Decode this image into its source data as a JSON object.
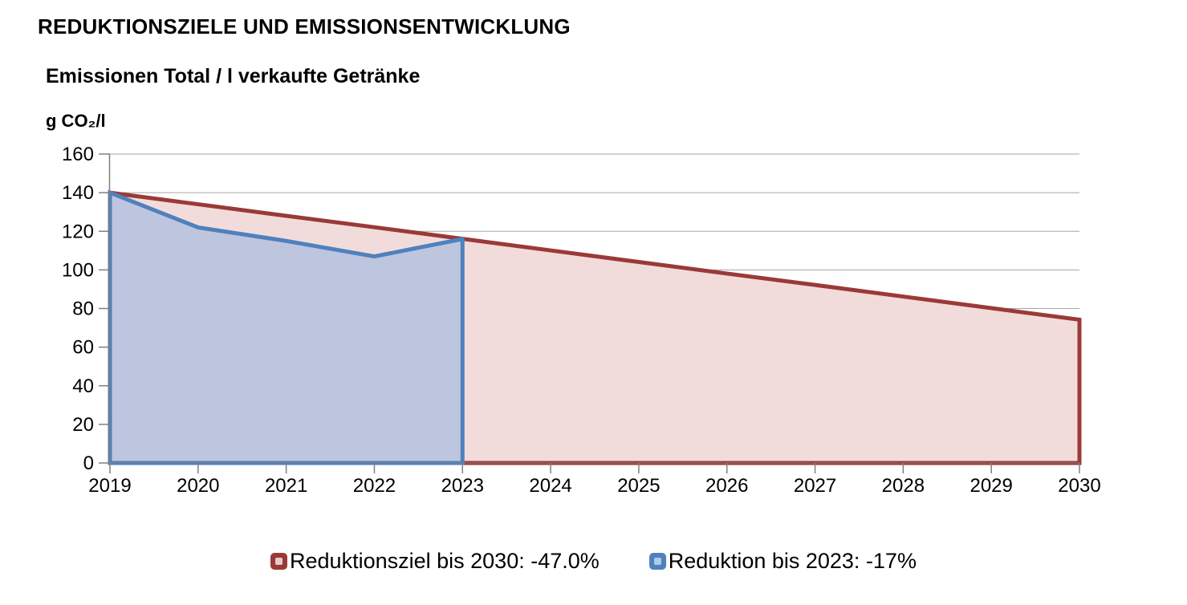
{
  "header": {
    "title": "REDUKTIONSZIELE UND EMISSIONSENTWICKLUNG",
    "subtitle": "Emissionen Total / l verkaufte Getränke",
    "unit_label": "g CO₂/l"
  },
  "chart_data": {
    "type": "area",
    "title": "Emissionen Total / l verkaufte Getränke",
    "ylabel": "g CO₂/l",
    "xlabel": "",
    "x": [
      2019,
      2020,
      2021,
      2022,
      2023,
      2024,
      2025,
      2026,
      2027,
      2028,
      2029,
      2030
    ],
    "ylim": [
      0,
      160
    ],
    "ytick_step": 20,
    "grid": "horizontal-only",
    "legend_position": "bottom",
    "axis_color": "#7F7F7F",
    "gridline_color": "#A6A6A6",
    "series": [
      {
        "name": "Reduktionsziel bis 2030: -47.0%",
        "x": [
          2019,
          2020,
          2021,
          2022,
          2023,
          2024,
          2025,
          2026,
          2027,
          2028,
          2029,
          2030
        ],
        "values": [
          140,
          134,
          128,
          122.1,
          116.1,
          110.1,
          104.1,
          98.1,
          92.2,
          86.2,
          80.2,
          74.2
        ],
        "line_color": "#9A3A37",
        "fill_color": "#F2DCDB"
      },
      {
        "name": "Reduktion bis 2023: -17%",
        "x": [
          2019,
          2020,
          2021,
          2022,
          2023
        ],
        "values": [
          140,
          122,
          115,
          107,
          116
        ],
        "line_color": "#4F81BD",
        "fill_color": "#BEC5DF"
      }
    ]
  },
  "legend": {
    "items": [
      {
        "label": "Reduktionsziel bis 2030: -47.0%",
        "line_color": "#9A3A37",
        "fill_color": "#E7CBCA"
      },
      {
        "label": "Reduktion bis 2023: -17%",
        "line_color": "#4F81BD",
        "fill_color": "#AFCBE8"
      }
    ]
  }
}
